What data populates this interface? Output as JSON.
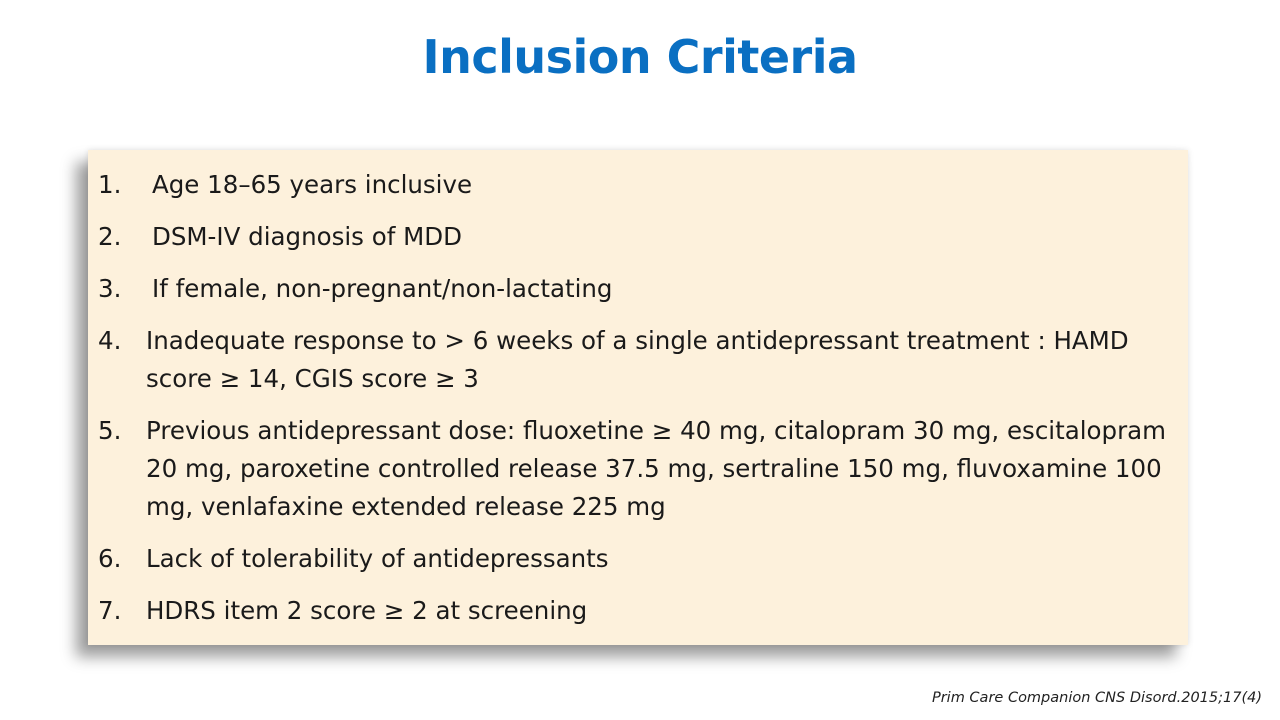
{
  "slide": {
    "title": "Inclusion Criteria",
    "criteria": [
      {
        "number": "1.",
        "text": "Age 18–65 years inclusive"
      },
      {
        "number": "2.",
        "text": "DSM-IV diagnosis of MDD"
      },
      {
        "number": "3.",
        "text": "If female, non-pregnant/non-lactating"
      },
      {
        "number": "4.",
        "text": "Inadequate response to > 6 weeks of a single antidepressant treatment : HAMD score ≥ 14, CGIS score ≥ 3"
      },
      {
        "number": "5.",
        "text": "Previous antidepressant dose: fluoxetine ≥ 40 mg, citalopram 30 mg, escitalopram 20 mg, paroxetine controlled release 37.5 mg, sertraline 150 mg, fluvoxamine 100 mg, venlafaxine extended release 225 mg"
      },
      {
        "number": "6.",
        "text": "Lack of tolerability of antidepressants"
      },
      {
        "number": "7.",
        "text": "HDRS item 2 score ≥ 2 at screening"
      }
    ],
    "citation": "Prim Care Companion CNS Disord.2015;17(4)"
  },
  "colors": {
    "title": "#0a6fc2",
    "box_background": "#fdf1dc",
    "text": "#1a1a1a"
  }
}
